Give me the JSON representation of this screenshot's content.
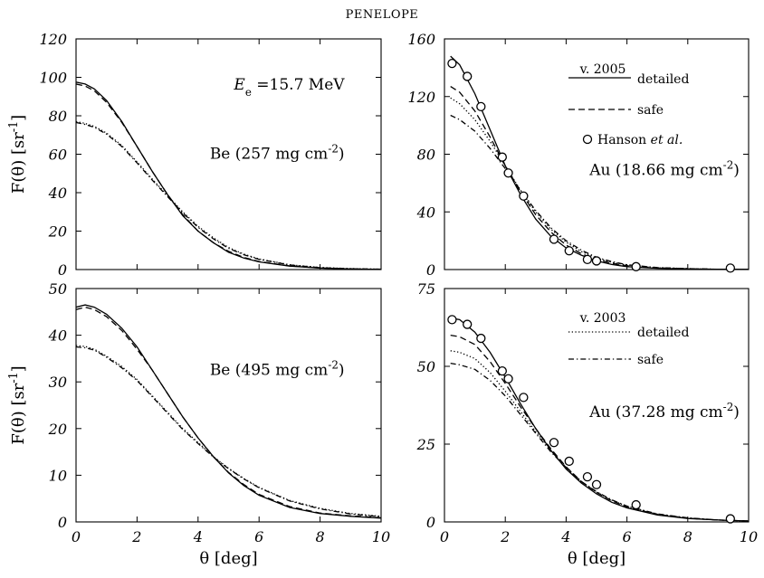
{
  "figure_title": "PENELOPE",
  "legend": {
    "v2005_label": "v. 2005",
    "v2005_detailed": "detailed",
    "v2005_safe": "safe",
    "experiment": "Hanson et al.",
    "v2003_label": "v. 2003",
    "v2003_detailed": "detailed",
    "v2003_safe": "safe"
  },
  "chart_data": [
    {
      "type": "line",
      "panel": "top-left",
      "energy_label": "E_e =15.7 MeV",
      "annotation": "Be (257 mg cm^-2)",
      "xlabel": "θ [deg]",
      "ylabel": "F(θ) [sr^-1]",
      "xlim": [
        0,
        10
      ],
      "ylim": [
        0,
        120
      ],
      "xticks": [
        0,
        2,
        4,
        6,
        8,
        10
      ],
      "yticks": [
        0,
        20,
        40,
        60,
        80,
        100,
        120
      ],
      "series": [
        {
          "name": "v. 2005 detailed",
          "style": "solid",
          "x": [
            0,
            0.3,
            0.6,
            1.0,
            1.5,
            2.0,
            2.5,
            3.0,
            3.5,
            4.0,
            4.5,
            5.0,
            5.5,
            6.0,
            7.0,
            8.0,
            9.0,
            10.0
          ],
          "y": [
            97.5,
            96.5,
            94,
            88,
            77,
            64,
            51,
            39,
            28,
            20,
            14,
            9,
            6,
            4,
            1.8,
            0.8,
            0.3,
            0.1
          ]
        },
        {
          "name": "v. 2005 safe",
          "style": "dashed",
          "x": [
            0,
            0.3,
            0.6,
            1.0,
            1.5,
            2.0,
            2.5,
            3.0,
            3.5,
            4.0,
            4.5,
            5.0,
            5.5,
            6.0,
            7.0,
            8.0,
            9.0,
            10.0
          ],
          "y": [
            96.5,
            95.5,
            93,
            87,
            76.5,
            64,
            51,
            39,
            28.5,
            20,
            14,
            9.5,
            6.3,
            4.2,
            1.9,
            0.8,
            0.3,
            0.1
          ]
        },
        {
          "name": "v. 2003 detailed",
          "style": "dotted",
          "x": [
            0,
            0.3,
            0.6,
            1.0,
            1.5,
            2.0,
            2.5,
            3.0,
            3.5,
            4.0,
            4.5,
            5.0,
            5.5,
            6.0,
            7.0,
            8.0,
            9.0,
            10.0
          ],
          "y": [
            77,
            76,
            74.5,
            71,
            64.5,
            56,
            47,
            38.5,
            30,
            22.5,
            16.5,
            11.5,
            8,
            5.5,
            2.5,
            1.1,
            0.5,
            0.2
          ]
        },
        {
          "name": "v. 2003 safe",
          "style": "dashdot",
          "x": [
            0,
            0.3,
            0.6,
            1.0,
            1.5,
            2.0,
            2.5,
            3.0,
            3.5,
            4.0,
            4.5,
            5.0,
            5.5,
            6.0,
            7.0,
            8.0,
            9.0,
            10.0
          ],
          "y": [
            76.5,
            75.5,
            74,
            70.5,
            64,
            55.5,
            46.5,
            38,
            29.5,
            22,
            16,
            11,
            7.7,
            5.3,
            2.4,
            1.0,
            0.4,
            0.2
          ]
        }
      ],
      "experiment": null
    },
    {
      "type": "line",
      "panel": "top-right",
      "annotation": "Au (18.66 mg cm^-2)",
      "xlabel": "θ [deg]",
      "ylabel": "",
      "xlim": [
        0,
        10
      ],
      "ylim": [
        0,
        160
      ],
      "xticks": [
        0,
        2,
        4,
        6,
        8,
        10
      ],
      "yticks": [
        0,
        40,
        80,
        120,
        160
      ],
      "series": [
        {
          "name": "v. 2005 detailed",
          "style": "solid",
          "x": [
            0.2,
            0.5,
            1.0,
            1.5,
            2.0,
            2.5,
            3.0,
            3.5,
            4.0,
            4.5,
            5.0,
            5.5,
            6.0,
            7.0,
            8.0,
            9.0,
            10.0
          ],
          "y": [
            148,
            142,
            122,
            97,
            72,
            52,
            35,
            23,
            15,
            10,
            6,
            3.5,
            2,
            0.9,
            0.4,
            0.2,
            0.1
          ]
        },
        {
          "name": "v. 2005 safe",
          "style": "dashed",
          "x": [
            0.2,
            0.5,
            1.0,
            1.5,
            2.0,
            2.5,
            3.0,
            3.5,
            4.0,
            4.5,
            5.0,
            5.5,
            6.0,
            7.0,
            8.0,
            9.0,
            10.0
          ],
          "y": [
            127,
            123,
            110,
            92,
            72,
            54,
            38,
            26,
            17,
            11,
            7,
            4.3,
            2.7,
            1.2,
            0.5,
            0.2,
            0.1
          ]
        },
        {
          "name": "v. 2003 detailed",
          "style": "dotted",
          "x": [
            0.2,
            0.5,
            1.0,
            1.5,
            2.0,
            2.5,
            3.0,
            3.5,
            4.0,
            4.5,
            5.0,
            5.5,
            6.0,
            7.0,
            8.0,
            9.0,
            10.0
          ],
          "y": [
            119,
            115,
            104,
            89,
            72,
            55,
            40,
            28,
            19,
            12.5,
            8,
            5,
            3,
            1.3,
            0.6,
            0.2,
            0.1
          ]
        },
        {
          "name": "v. 2003 safe",
          "style": "dashdot",
          "x": [
            0.2,
            0.5,
            1.0,
            1.5,
            2.0,
            2.5,
            3.0,
            3.5,
            4.0,
            4.5,
            5.0,
            5.5,
            6.0,
            7.0,
            8.0,
            9.0,
            10.0
          ],
          "y": [
            107,
            104,
            96,
            84,
            70,
            55,
            41,
            29,
            20,
            13.5,
            8.5,
            5.5,
            3.3,
            1.4,
            0.6,
            0.2,
            0.1
          ]
        }
      ],
      "experiment": {
        "name": "Hanson et al.",
        "x": [
          0.25,
          0.75,
          1.2,
          1.9,
          2.1,
          2.6,
          3.6,
          4.1,
          4.7,
          5.0,
          6.3,
          9.4
        ],
        "y": [
          143,
          134,
          113,
          78,
          67,
          51,
          21,
          13,
          7,
          6,
          2,
          1
        ]
      }
    },
    {
      "type": "line",
      "panel": "bottom-left",
      "annotation": "Be (495 mg cm^-2)",
      "xlabel": "θ [deg]",
      "ylabel": "F(θ) [sr^-1]",
      "xlim": [
        0,
        10
      ],
      "ylim": [
        0,
        50
      ],
      "xticks": [
        0,
        2,
        4,
        6,
        8,
        10
      ],
      "yticks": [
        0,
        10,
        20,
        30,
        40,
        50
      ],
      "series": [
        {
          "name": "v. 2005 detailed",
          "style": "solid",
          "x": [
            0,
            0.3,
            0.6,
            1.0,
            1.5,
            2.0,
            2.5,
            3.0,
            3.5,
            4.0,
            4.5,
            5.0,
            5.5,
            6.0,
            7.0,
            8.0,
            9.0,
            10.0
          ],
          "y": [
            46,
            46.5,
            46,
            44.5,
            41.5,
            37.5,
            32.5,
            27.5,
            22.5,
            18,
            14,
            10.5,
            7.8,
            5.7,
            3.1,
            1.8,
            1.2,
            0.8
          ]
        },
        {
          "name": "v. 2005 safe",
          "style": "dashed",
          "x": [
            0,
            0.3,
            0.6,
            1.0,
            1.5,
            2.0,
            2.5,
            3.0,
            3.5,
            4.0,
            4.5,
            5.0,
            5.5,
            6.0,
            7.0,
            8.0,
            9.0,
            10.0
          ],
          "y": [
            45.5,
            46,
            45.5,
            44,
            41,
            37,
            32.5,
            27.5,
            22.5,
            18,
            14,
            10.6,
            8,
            5.9,
            3.3,
            1.9,
            1.3,
            0.9
          ]
        },
        {
          "name": "v. 2003 detailed",
          "style": "dotted",
          "x": [
            0,
            0.3,
            0.6,
            1.0,
            1.5,
            2.0,
            2.5,
            3.0,
            3.5,
            4.0,
            4.5,
            5.0,
            5.5,
            6.0,
            7.0,
            8.0,
            9.0,
            10.0
          ],
          "y": [
            37.8,
            37.6,
            37,
            35.5,
            33.3,
            30.5,
            27,
            23.5,
            20,
            17,
            14,
            11.5,
            9.3,
            7.4,
            4.6,
            2.9,
            1.8,
            1.2
          ]
        },
        {
          "name": "v. 2003 safe",
          "style": "dashdot",
          "x": [
            0,
            0.3,
            0.6,
            1.0,
            1.5,
            2.0,
            2.5,
            3.0,
            3.5,
            4.0,
            4.5,
            5.0,
            5.5,
            6.0,
            7.0,
            8.0,
            9.0,
            10.0
          ],
          "y": [
            37.5,
            37.3,
            36.8,
            35.3,
            33,
            30.3,
            26.8,
            23.3,
            19.8,
            16.8,
            13.9,
            11.4,
            9.2,
            7.3,
            4.5,
            2.8,
            1.7,
            1.1
          ]
        }
      ],
      "experiment": null
    },
    {
      "type": "line",
      "panel": "bottom-right",
      "annotation": "Au (37.28 mg cm^-2)",
      "xlabel": "θ [deg]",
      "ylabel": "",
      "xlim": [
        0,
        10
      ],
      "ylim": [
        0,
        75
      ],
      "xticks": [
        0,
        2,
        4,
        6,
        8,
        10
      ],
      "yticks": [
        0,
        25,
        50,
        75
      ],
      "series": [
        {
          "name": "v. 2005 detailed",
          "style": "solid",
          "x": [
            0.2,
            0.5,
            1.0,
            1.5,
            2.0,
            2.5,
            3.0,
            3.5,
            4.0,
            4.5,
            5.0,
            5.5,
            6.0,
            7.0,
            8.0,
            9.0,
            10.0
          ],
          "y": [
            65.5,
            65,
            61,
            54.5,
            46.5,
            38,
            30,
            23,
            17,
            12.5,
            9,
            6.3,
            4.5,
            2.2,
            1.1,
            0.6,
            0.3
          ]
        },
        {
          "name": "v. 2005 safe",
          "style": "dashed",
          "x": [
            0.2,
            0.5,
            1.0,
            1.5,
            2.0,
            2.5,
            3.0,
            3.5,
            4.0,
            4.5,
            5.0,
            5.5,
            6.0,
            7.0,
            8.0,
            9.0,
            10.0
          ],
          "y": [
            60,
            59.5,
            57,
            51.5,
            44.5,
            37,
            30,
            23.5,
            17.7,
            13,
            9.5,
            6.8,
            4.8,
            2.4,
            1.2,
            0.6,
            0.3
          ]
        },
        {
          "name": "v. 2003 detailed",
          "style": "dotted",
          "x": [
            0.2,
            0.5,
            1.0,
            1.5,
            2.0,
            2.5,
            3.0,
            3.5,
            4.0,
            4.5,
            5.0,
            5.5,
            6.0,
            7.0,
            8.0,
            9.0,
            10.0
          ],
          "y": [
            55,
            54.5,
            52.5,
            48,
            42,
            35.5,
            29,
            23,
            17.5,
            13,
            9.6,
            7,
            5,
            2.5,
            1.2,
            0.6,
            0.3
          ]
        },
        {
          "name": "v. 2003 safe",
          "style": "dashdot",
          "x": [
            0.2,
            0.5,
            1.0,
            1.5,
            2.0,
            2.5,
            3.0,
            3.5,
            4.0,
            4.5,
            5.0,
            5.5,
            6.0,
            7.0,
            8.0,
            9.0,
            10.0
          ],
          "y": [
            51,
            50.5,
            49,
            45.5,
            40.5,
            34.5,
            28.5,
            22.5,
            17.5,
            13,
            9.7,
            7.1,
            5.1,
            2.6,
            1.3,
            0.6,
            0.3
          ]
        }
      ],
      "experiment": {
        "name": "Hanson et al.",
        "x": [
          0.25,
          0.75,
          1.2,
          1.9,
          2.1,
          2.6,
          3.6,
          4.1,
          4.7,
          5.0,
          6.3,
          9.4
        ],
        "y": [
          65,
          63.5,
          59,
          48.5,
          46,
          40,
          25.5,
          19.5,
          14.5,
          12,
          5.5,
          1
        ]
      }
    }
  ]
}
